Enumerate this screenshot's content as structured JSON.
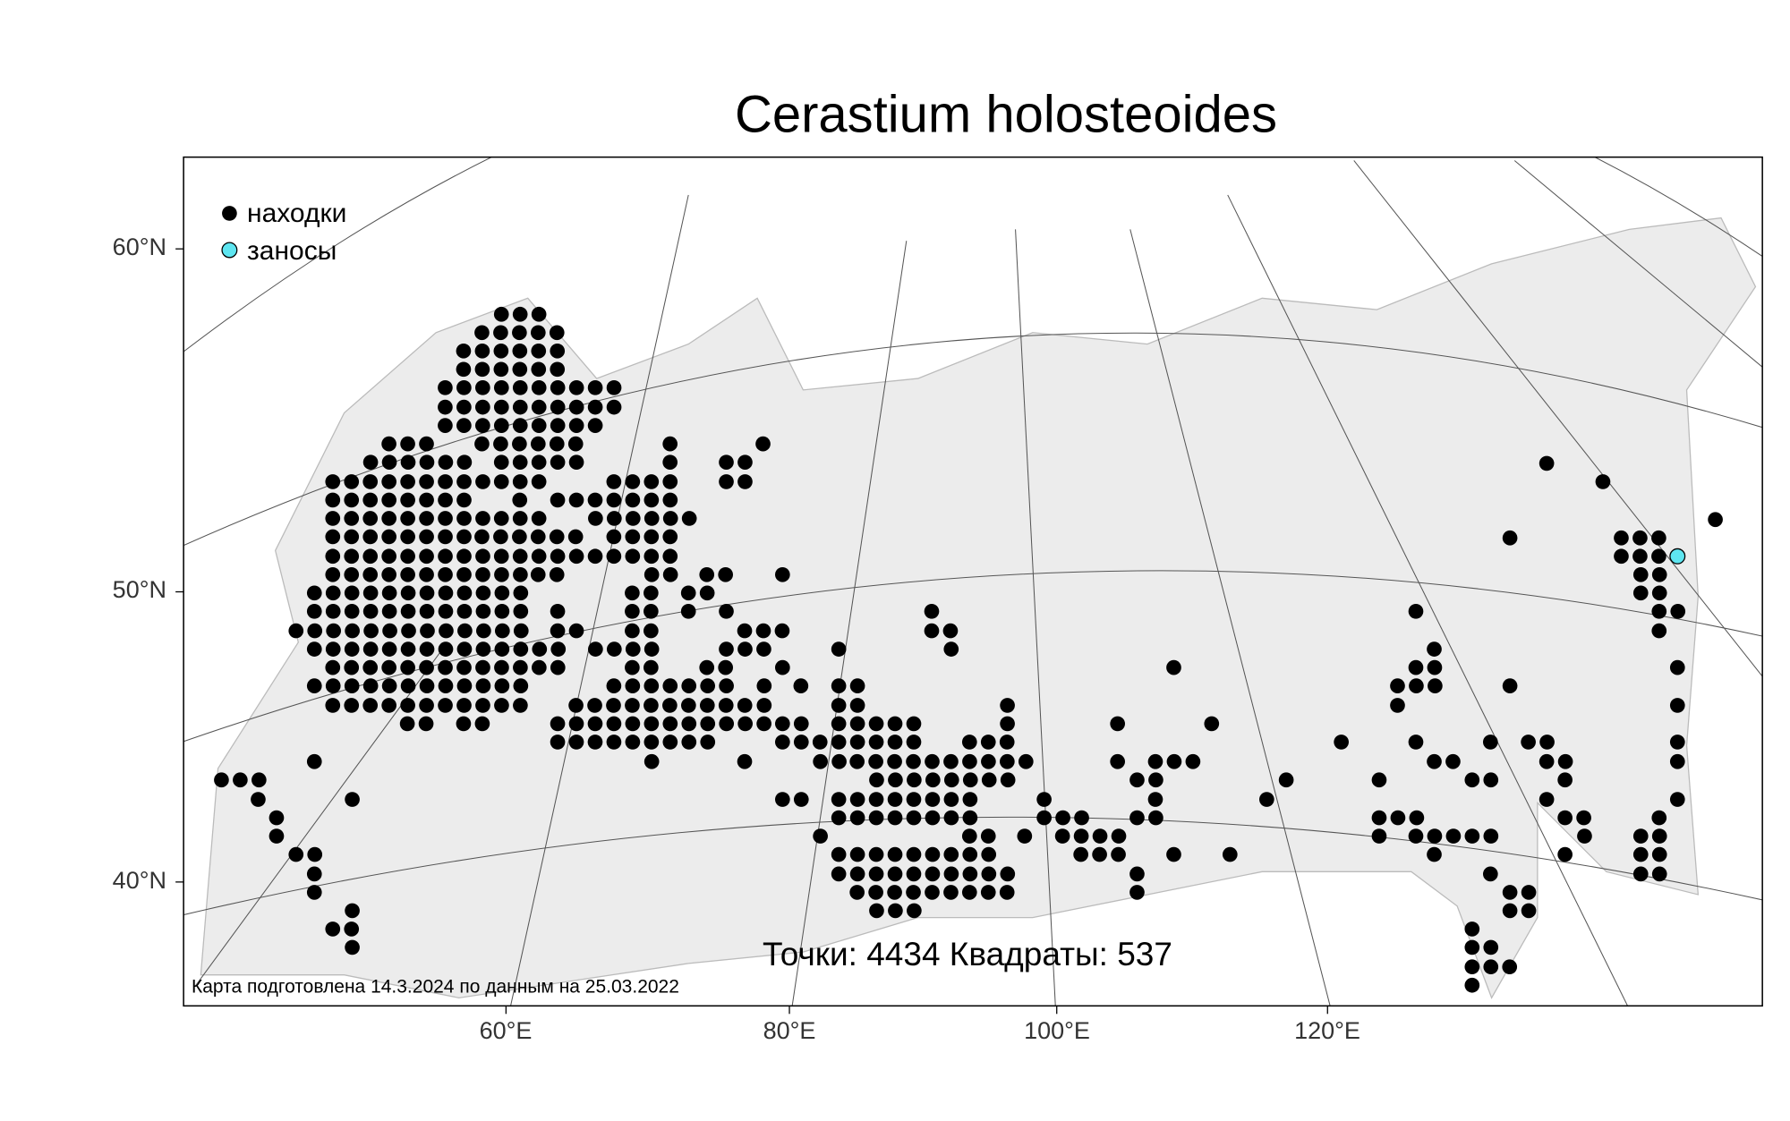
{
  "title": "Cerastium holosteoides",
  "legend": {
    "items": [
      "находки",
      "заносы"
    ]
  },
  "axes": {
    "lat_labels": [
      "60°N",
      "50°N",
      "40°N"
    ],
    "lon_labels": [
      "60°E",
      "80°E",
      "100°E",
      "120°E"
    ]
  },
  "stats": "Точки: 4434 Квадраты: 537",
  "note": "Карта подготовлена 14.3.2024 по данным на 25.03.2022"
}
